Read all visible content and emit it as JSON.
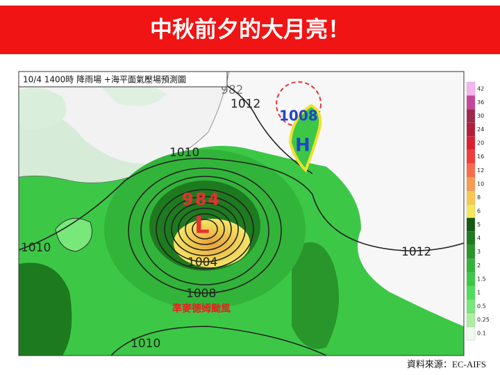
{
  "header": {
    "title": "中秋前夕的大月亮！"
  },
  "map": {
    "caption": "10/4 1400時 降雨場 +海平面氣壓場預測圖",
    "labels": [
      {
        "text": "982"
      },
      {
        "text": "1012"
      },
      {
        "text": "1008"
      },
      {
        "text": "H"
      },
      {
        "text": "1010"
      },
      {
        "text": "984"
      },
      {
        "text": "L"
      },
      {
        "text": "1004"
      },
      {
        "text": "1008"
      },
      {
        "text": "1010"
      },
      {
        "text": "1010"
      },
      {
        "text": "1012"
      }
    ],
    "storm_name": "準麥德姆颱風"
  },
  "legend": {
    "levels": [
      {
        "value": 42,
        "color": "#f5b4ee"
      },
      {
        "value": 36,
        "color": "#c8469a"
      },
      {
        "value": 30,
        "color": "#a0284c"
      },
      {
        "value": 24,
        "color": "#b41e3c"
      },
      {
        "value": 20,
        "color": "#dc1e2d"
      },
      {
        "value": 16,
        "color": "#f03c3c"
      },
      {
        "value": 12,
        "color": "#f86c4c"
      },
      {
        "value": 10,
        "color": "#f89c50"
      },
      {
        "value": 8,
        "color": "#f8c850"
      },
      {
        "value": 6,
        "color": "#f8e65a"
      },
      {
        "value": 5,
        "color": "#145a14"
      },
      {
        "value": 4,
        "color": "#1e7a1e"
      },
      {
        "value": 3,
        "color": "#28962a"
      },
      {
        "value": 2,
        "color": "#32b43a"
      },
      {
        "value": 1.5,
        "color": "#3cc846"
      },
      {
        "value": 1,
        "color": "#50dc5a"
      },
      {
        "value": 0.5,
        "color": "#78e87a"
      },
      {
        "value": 0.25,
        "color": "#aaf0a0"
      },
      {
        "value": 0.1,
        "color": "#eefaea"
      }
    ]
  },
  "source": "資料來源：EC-AIFS"
}
